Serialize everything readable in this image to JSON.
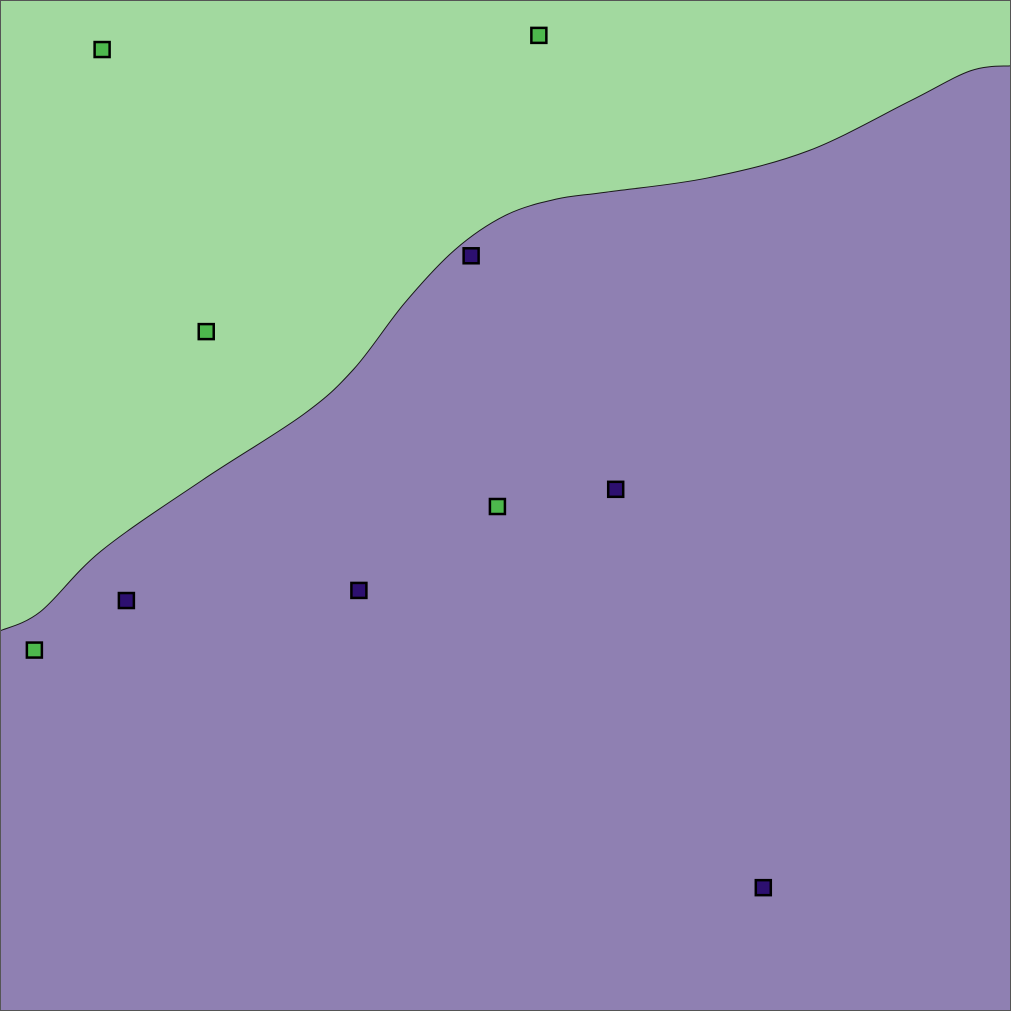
{
  "chart_data": {
    "type": "scatter",
    "title": "",
    "xlabel": "",
    "ylabel": "",
    "xlim": [
      0,
      1
    ],
    "ylim": [
      0,
      1
    ],
    "grid": false,
    "legend": "none",
    "regions": [
      {
        "class": "A",
        "color": "#a2d99f",
        "area": "upper-left"
      },
      {
        "class": "B",
        "color": "#8f80b2",
        "area": "lower-right"
      }
    ],
    "decision_boundary": [
      [
        0.0,
        0.376
      ],
      [
        0.04,
        0.395
      ],
      [
        0.1,
        0.455
      ],
      [
        0.2,
        0.525
      ],
      [
        0.3,
        0.59
      ],
      [
        0.35,
        0.635
      ],
      [
        0.4,
        0.7
      ],
      [
        0.45,
        0.753
      ],
      [
        0.5,
        0.787
      ],
      [
        0.55,
        0.803
      ],
      [
        0.6,
        0.81
      ],
      [
        0.7,
        0.824
      ],
      [
        0.8,
        0.851
      ],
      [
        0.9,
        0.9
      ],
      [
        0.96,
        0.93
      ],
      [
        1.0,
        0.935
      ]
    ],
    "series": [
      {
        "class": "A",
        "color": "#4db84d",
        "points": [
          {
            "x": 0.101,
            "y": 0.951
          },
          {
            "x": 0.533,
            "y": 0.965
          },
          {
            "x": 0.204,
            "y": 0.672
          },
          {
            "x": 0.492,
            "y": 0.499
          },
          {
            "x": 0.034,
            "y": 0.357
          }
        ]
      },
      {
        "class": "B",
        "color": "#2d1070",
        "points": [
          {
            "x": 0.466,
            "y": 0.747
          },
          {
            "x": 0.609,
            "y": 0.516
          },
          {
            "x": 0.125,
            "y": 0.406
          },
          {
            "x": 0.355,
            "y": 0.416
          },
          {
            "x": 0.755,
            "y": 0.122
          }
        ]
      }
    ]
  }
}
